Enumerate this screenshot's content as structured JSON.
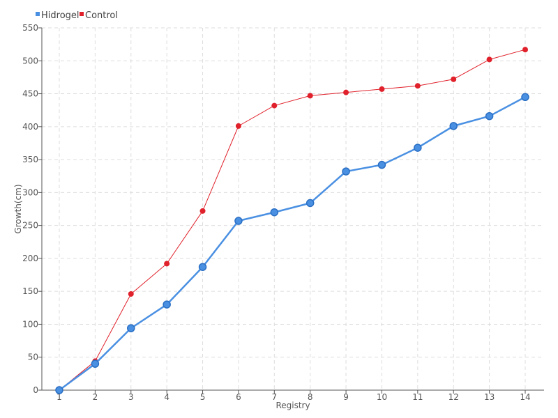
{
  "chart_data": {
    "type": "line",
    "title": "",
    "xlabel": "Registry",
    "ylabel": "Growth(cm)",
    "categories": [
      "1",
      "2",
      "3",
      "4",
      "5",
      "6",
      "7",
      "8",
      "9",
      "10",
      "11",
      "12",
      "13",
      "14"
    ],
    "ylim": [
      0,
      550
    ],
    "yticks": [
      0,
      50,
      100,
      150,
      200,
      250,
      300,
      350,
      400,
      450,
      500,
      550
    ],
    "grid": true,
    "legend_position": "top-left",
    "series": [
      {
        "name": "Hidrogel",
        "color": "#4a90e2",
        "values": [
          0,
          40,
          94,
          130,
          187,
          257,
          270,
          284,
          332,
          342,
          368,
          401,
          416,
          445
        ]
      },
      {
        "name": "Control",
        "color": "#e0202a",
        "values": [
          0,
          44,
          146,
          192,
          272,
          401,
          432,
          447,
          452,
          457,
          462,
          472,
          502,
          517
        ]
      }
    ]
  }
}
